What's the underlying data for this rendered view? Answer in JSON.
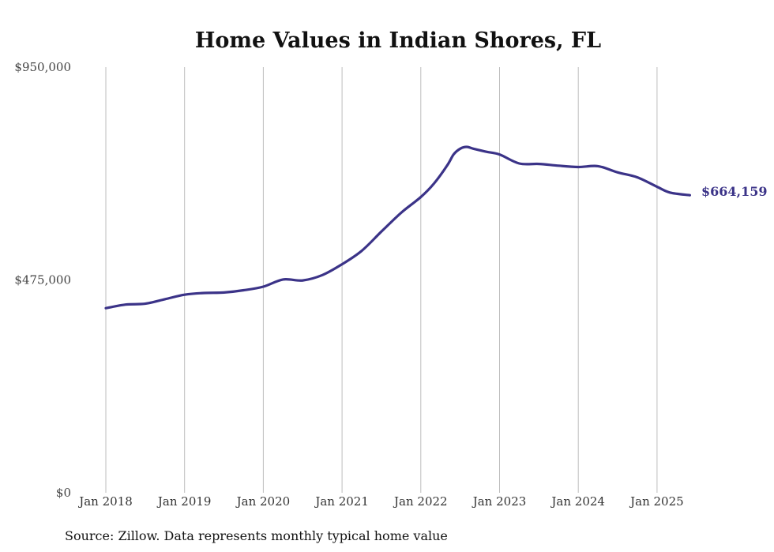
{
  "chart_data": {
    "type": "line",
    "title": "Home Values in Indian Shores, FL",
    "source_note": "Source: Zillow. Data represents monthly typical home value",
    "ylim": [
      0,
      950000
    ],
    "y_ticks": [
      0,
      475000,
      950000
    ],
    "y_tick_labels": [
      "$0",
      "$475,000",
      "$950,000"
    ],
    "x_ticks": [
      "2018-01",
      "2019-01",
      "2020-01",
      "2021-01",
      "2022-01",
      "2023-01",
      "2024-01",
      "2025-01"
    ],
    "x_tick_labels": [
      "Jan 2018",
      "Jan 2019",
      "Jan 2020",
      "Jan 2021",
      "Jan 2022",
      "Jan 2023",
      "Jan 2024",
      "Jan 2025"
    ],
    "grid": {
      "vertical": true,
      "horizontal": false
    },
    "line_color": "#3b3388",
    "end_label": "$664,159",
    "series": [
      {
        "x": [
          "2018-01",
          "2018-04",
          "2018-07",
          "2018-10",
          "2019-01",
          "2019-04",
          "2019-07",
          "2019-10",
          "2020-01",
          "2020-04",
          "2020-07",
          "2020-10",
          "2021-01",
          "2021-04",
          "2021-07",
          "2021-10",
          "2022-01",
          "2022-03",
          "2022-05",
          "2022-06",
          "2022-07",
          "2022-08",
          "2022-09",
          "2022-11",
          "2023-01",
          "2023-04",
          "2023-07",
          "2023-10",
          "2024-01",
          "2024-04",
          "2024-07",
          "2024-10",
          "2025-01",
          "2025-03",
          "2025-06"
        ],
        "y": [
          412000,
          420000,
          422000,
          432000,
          442000,
          446000,
          447000,
          452000,
          460000,
          476000,
          474000,
          486000,
          510000,
          540000,
          583000,
          625000,
          660000,
          690000,
          730000,
          755000,
          768000,
          772000,
          768000,
          761000,
          755000,
          735000,
          734000,
          730000,
          727000,
          729000,
          715000,
          704000,
          683000,
          670000,
          664159
        ]
      }
    ]
  }
}
